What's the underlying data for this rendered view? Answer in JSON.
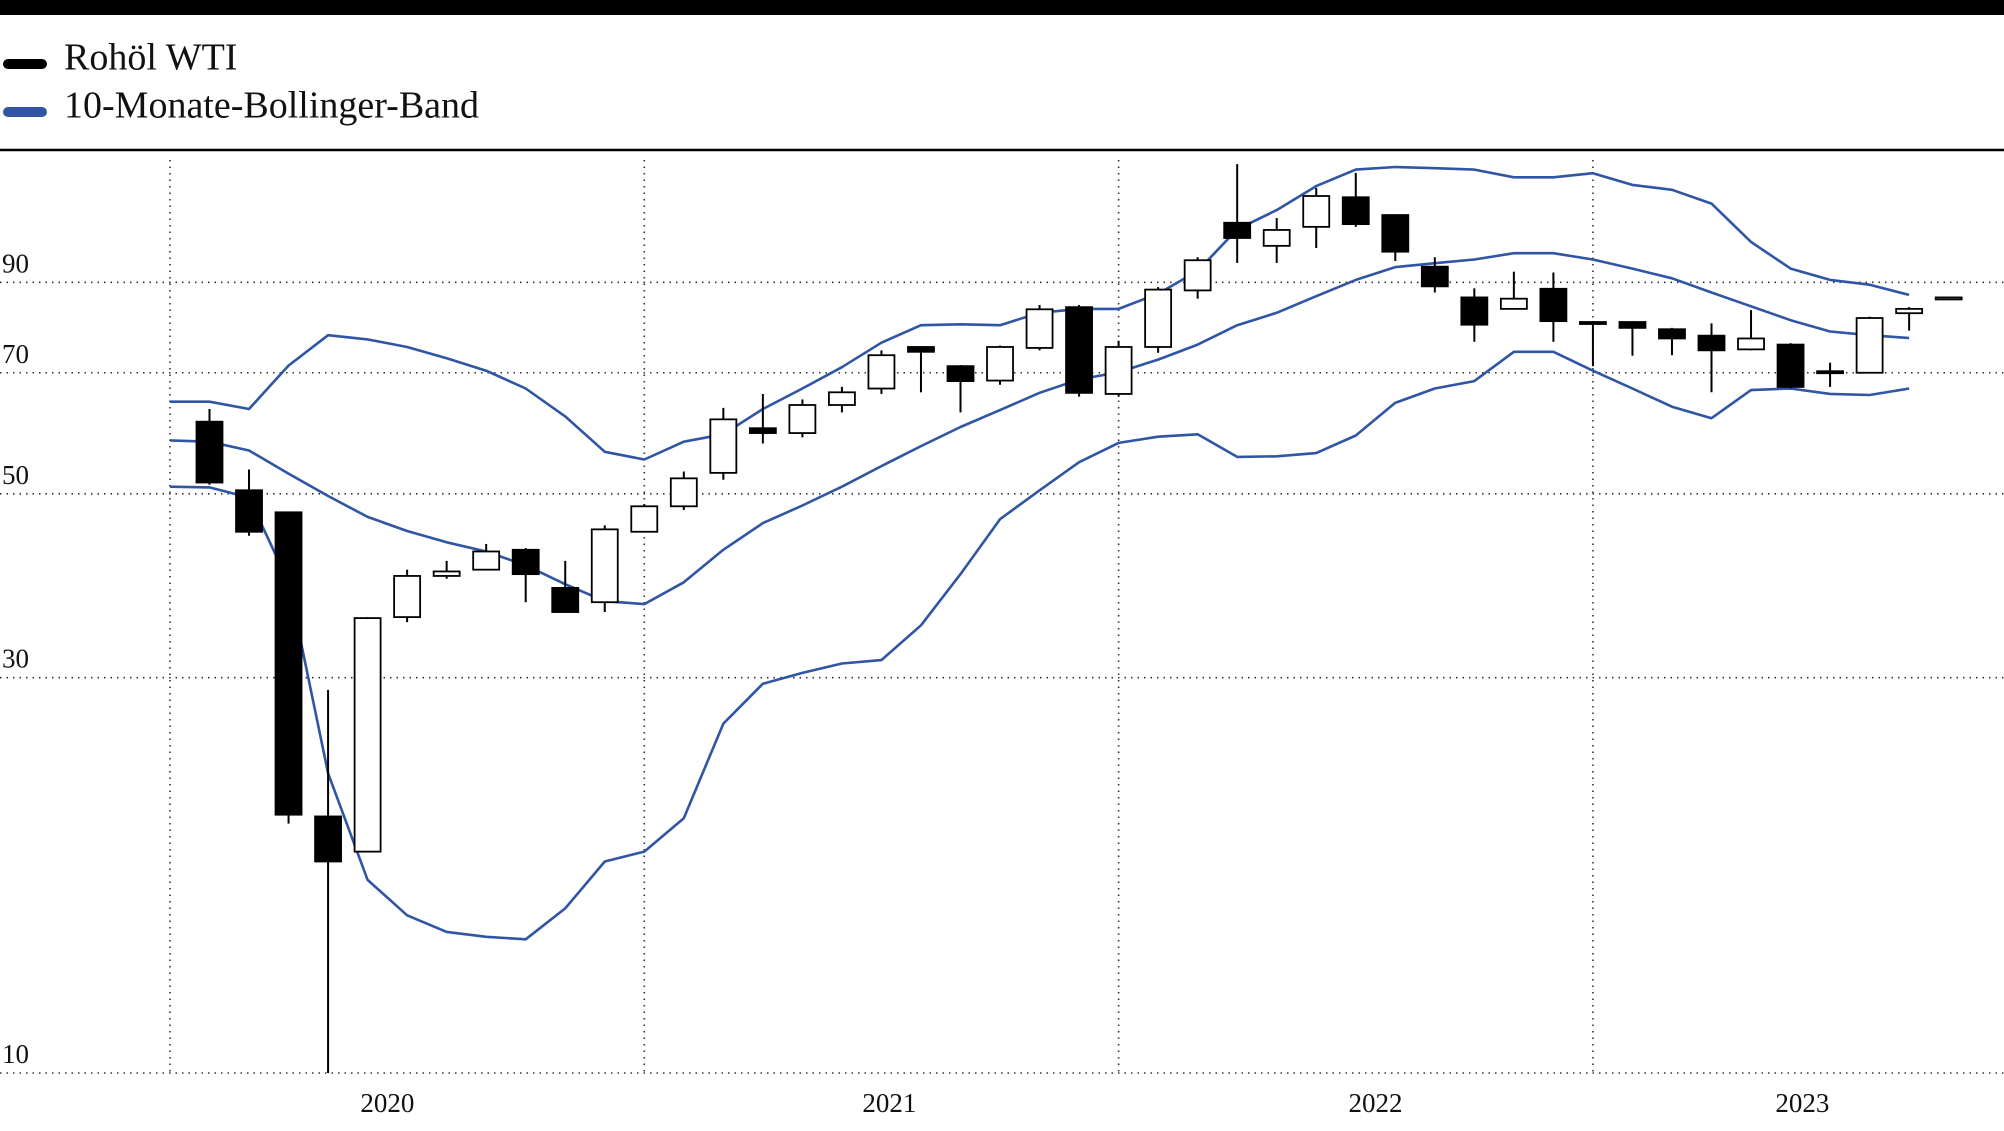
{
  "chart_data": {
    "type": "candlestick",
    "log_y": true,
    "grid": true,
    "legend_position": "top-left",
    "categories": [
      null,
      null,
      null,
      null,
      null,
      null,
      null,
      null,
      null,
      null,
      null,
      null,
      null,
      null,
      null,
      null,
      null,
      null,
      null,
      null,
      null,
      null,
      null,
      null,
      null,
      null,
      null,
      null,
      null,
      null,
      null,
      null,
      null,
      null,
      null,
      null,
      null,
      null,
      null,
      null,
      null,
      null,
      null,
      null,
      null,
      null
    ],
    "xlim": [
      -4.3,
      46.4
    ],
    "xticks": [
      {
        "value": 5.5,
        "label": "2020"
      },
      {
        "value": 18.2,
        "label": "2021"
      },
      {
        "value": 30.5,
        "label": "2022"
      },
      {
        "value": 41.3,
        "label": "2023"
      }
    ],
    "xgrid": [
      0,
      12,
      24,
      36
    ],
    "ylim": [
      10,
      130
    ],
    "yticks": [
      10,
      30,
      50,
      70,
      90
    ],
    "series": [
      {
        "name": "Rohöl WTI",
        "type": "candlestick",
        "color": "#000000",
        "up_color": "#ffffff",
        "down_color": "#000000",
        "open": [
          null,
          61.1,
          50.5,
          47.5,
          20.4,
          18.5,
          35.5,
          39.8,
          40.5,
          42.8,
          38.5,
          37,
          45,
          48.3,
          53,
          60,
          59.2,
          64,
          67,
          75.2,
          71.3,
          68.5,
          75,
          84,
          66,
          75.2,
          88,
          106.2,
          99.6,
          105,
          114,
          108.5,
          94,
          86.3,
          83.6,
          88.4,
          80.6,
          80.6,
          79,
          77.6,
          74.7,
          75.7,
          70.3,
          70,
          82.6,
          86.3
        ],
        "high": [
          null,
          63.3,
          53.5,
          47.6,
          29,
          35.5,
          40.5,
          41.5,
          43.5,
          43,
          41.5,
          45.8,
          48.6,
          53.2,
          63.5,
          66,
          65,
          67.3,
          74.5,
          75.3,
          71.5,
          75.5,
          84.5,
          84.5,
          76.5,
          88.8,
          96.5,
          125,
          107.6,
          117,
          122,
          108.7,
          96.5,
          88.5,
          92.7,
          92.5,
          80.8,
          80.8,
          79.3,
          80.3,
          83.3,
          76,
          72,
          81.8,
          84,
          86.3
        ],
        "low": [
          null,
          51.3,
          44.5,
          20,
          10,
          18.5,
          35,
          39.5,
          40.5,
          37,
          36,
          36,
          45,
          47.8,
          52,
          57.5,
          58.5,
          62.7,
          66,
          66.3,
          62.7,
          67.7,
          74.5,
          65.5,
          65.5,
          74,
          86,
          95,
          95,
          99,
          105,
          95.5,
          87.5,
          76.3,
          83.6,
          76.3,
          71.3,
          73.4,
          73.5,
          66.3,
          74.5,
          67,
          67.3,
          70,
          78.7,
          86.3
        ],
        "close": [
          null,
          51.6,
          45,
          20.5,
          18,
          35.4,
          39.8,
          40.3,
          42.6,
          40,
          36,
          45.3,
          48.3,
          52.2,
          61.5,
          59.2,
          64,
          66.3,
          73.5,
          74.2,
          68.4,
          75.2,
          83.5,
          66.2,
          75.2,
          88.2,
          95.7,
          101.8,
          104.1,
          114.4,
          105.8,
          98,
          89,
          80,
          86,
          80.8,
          80.2,
          79.3,
          77,
          74.5,
          77,
          67.3,
          70,
          81.5,
          83.6,
          86.3
        ]
      },
      {
        "name": "10-Monate-Bollinger-Band",
        "type": "band",
        "color": "#2f55a4",
        "upper": [
          64.6,
          64.6,
          63.3,
          71.4,
          77.7,
          76.8,
          75.2,
          72.9,
          70.4,
          67.0,
          62.0,
          56.2,
          55.0,
          57.8,
          59.0,
          63.3,
          67.0,
          71.1,
          76.1,
          79.9,
          80.1,
          79.9,
          82.7,
          83.6,
          83.6,
          87.2,
          92.9,
          104.3,
          110.0,
          117.6,
          123.1,
          124.0,
          123.6,
          123.1,
          120.5,
          120.5,
          121.9,
          118.0,
          116.4,
          112.0,
          100.7,
          93.5,
          90.6,
          89.4,
          86.9,
          null
        ],
        "middle": [
          58.0,
          57.8,
          56.4,
          52.9,
          49.7,
          46.9,
          45.1,
          43.7,
          42.6,
          41.0,
          38.9,
          37.1,
          36.8,
          39.1,
          42.8,
          46.1,
          48.4,
          51.0,
          54.0,
          57.1,
          60.2,
          63.1,
          66.2,
          68.7,
          70.1,
          72.6,
          75.7,
          79.9,
          82.7,
          86.6,
          90.6,
          93.9,
          94.9,
          95.9,
          97.6,
          97.6,
          95.9,
          93.5,
          91.0,
          87.5,
          84.2,
          81.0,
          78.5,
          77.7,
          77.1,
          null
        ],
        "lower": [
          51.0,
          50.9,
          49.5,
          39.1,
          23.0,
          17.1,
          15.5,
          14.8,
          14.6,
          14.5,
          15.8,
          18.0,
          18.5,
          20.3,
          26.4,
          29.5,
          30.4,
          31.2,
          31.5,
          34.7,
          40.0,
          46.6,
          50.5,
          54.6,
          57.6,
          58.6,
          59.0,
          55.4,
          55.5,
          56.0,
          58.8,
          64.4,
          67.0,
          68.4,
          74.2,
          74.2,
          70.4,
          67.0,
          63.7,
          61.7,
          66.7,
          67.0,
          66.0,
          65.8,
          67.0,
          null
        ]
      }
    ]
  }
}
